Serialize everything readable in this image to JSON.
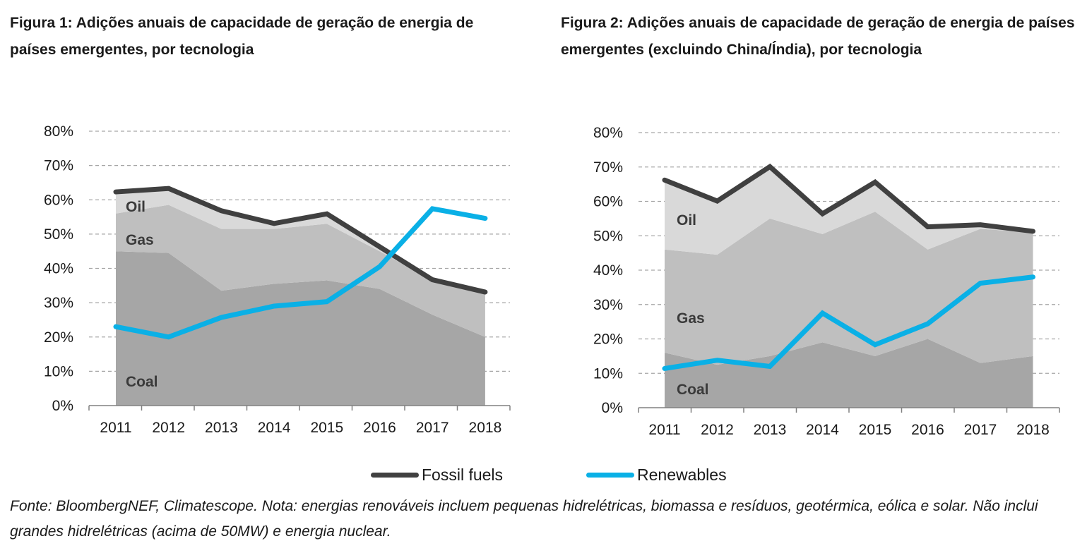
{
  "titles": {
    "fig1": "Figura 1: Adições anuais de capacidade de geração de energia  de países emergentes, por tecnologia",
    "fig2": "Figura 2: Adições anuais de capacidade de geração de energia de países emergentes (excluindo China/Índia), por tecnologia"
  },
  "colors": {
    "coal": "#a6a6a6",
    "gas": "#bfbfbf",
    "oil": "#d9d9d9",
    "fossil_line": "#404040",
    "renewables_line": "#0ab0e6",
    "grid": "#a6a6a6"
  },
  "legend": {
    "fossil": "Fossil fuels",
    "renewables": "Renewables"
  },
  "note": "Fonte: BloombergNEF, Climatescope. Nota: energias renováveis incluem pequenas hidrelétricas, biomassa e resíduos, geotérmica, eólica e solar. Não inclui grandes hidrelétricas (acima de 50MW) e energia nuclear.",
  "chart_data": [
    {
      "type": "area",
      "title": "Figura 1: Adições anuais de capacidade de geração de energia  de países emergentes, por tecnologia",
      "categories": [
        "2011",
        "2012",
        "2013",
        "2014",
        "2015",
        "2016",
        "2017",
        "2018"
      ],
      "y_tick_labels": [
        "0%",
        "10%",
        "20%",
        "30%",
        "40%",
        "50%",
        "60%",
        "70%",
        "80%"
      ],
      "ylim": [
        0,
        80
      ],
      "grid": true,
      "area_labels": {
        "oil": "Oil",
        "gas": "Gas",
        "coal": "Coal"
      },
      "stacked_areas": [
        {
          "name": "Coal",
          "values": [
            45,
            44.5,
            33.5,
            35.5,
            36.5,
            34,
            26.5,
            20
          ]
        },
        {
          "name": "Gas",
          "values": [
            11,
            14,
            18,
            16,
            16.5,
            11,
            10,
            13
          ]
        },
        {
          "name": "Oil",
          "values": [
            6,
            4.5,
            5.5,
            1.5,
            3,
            1,
            0.5,
            0
          ]
        }
      ],
      "series": [
        {
          "name": "Fossil fuels",
          "values": [
            62.3,
            63.3,
            56.8,
            53.1,
            55.9,
            46.3,
            36.7,
            33.1
          ]
        },
        {
          "name": "Renewables",
          "values": [
            23,
            20,
            25.7,
            29,
            30.3,
            40.5,
            57.4,
            54.6
          ]
        }
      ]
    },
    {
      "type": "area",
      "title": "Figura 2: Adições anuais de capacidade de geração de energia de países emergentes (excluindo China/Índia), por tecnologia",
      "categories": [
        "2011",
        "2012",
        "2013",
        "2014",
        "2015",
        "2016",
        "2017",
        "2018"
      ],
      "y_tick_labels": [
        "0%",
        "10%",
        "20%",
        "30%",
        "40%",
        "50%",
        "60%",
        "70%",
        "80%"
      ],
      "ylim": [
        0,
        80
      ],
      "grid": true,
      "area_labels": {
        "oil": "Oil",
        "gas": "Gas",
        "coal": "Coal"
      },
      "stacked_areas": [
        {
          "name": "Coal",
          "values": [
            16,
            12.5,
            15,
            19,
            15,
            20,
            13,
            15
          ]
        },
        {
          "name": "Gas",
          "values": [
            30,
            32,
            40,
            31.5,
            42,
            26,
            39,
            36
          ]
        },
        {
          "name": "Oil",
          "values": [
            20,
            15.5,
            15,
            5.5,
            8.5,
            6.5,
            1.5,
            0
          ]
        }
      ],
      "series": [
        {
          "name": "Fossil fuels",
          "values": [
            66.2,
            60.1,
            70.1,
            56.4,
            65.6,
            52.6,
            53.2,
            51.3
          ]
        },
        {
          "name": "Renewables",
          "values": [
            11.4,
            13.8,
            12,
            27.5,
            18.3,
            24.4,
            36.2,
            38
          ]
        }
      ]
    }
  ]
}
